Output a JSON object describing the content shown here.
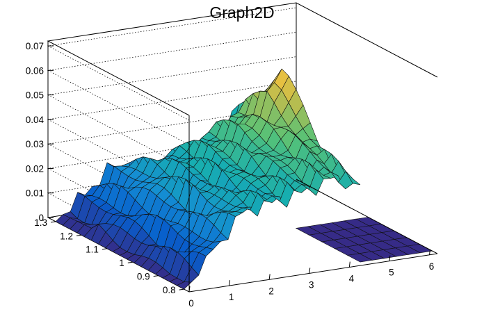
{
  "chart_data": {
    "type": "surface",
    "title": "Graph2D",
    "x_ticks": [
      "0",
      "1",
      "2",
      "3",
      "4",
      "5",
      "6"
    ],
    "y_ticks": [
      "0.8",
      "0.9",
      "1",
      "1.1",
      "1.2",
      "1.3"
    ],
    "z_ticks": [
      "0",
      "0.01",
      "0.02",
      "0.03",
      "0.04",
      "0.05",
      "0.06",
      "0.07"
    ],
    "xlim": [
      0,
      6.2
    ],
    "ylim": [
      0.78,
      1.33
    ],
    "zlim": [
      0,
      0.072
    ],
    "colormap": "kBird",
    "grid_z": true,
    "approx_points": {
      "x": [
        0,
        1.5,
        3.0,
        3.8,
        4.4
      ],
      "y": [
        0.8,
        0.95,
        1.1,
        1.2,
        1.3
      ],
      "z": [
        [
          0.0,
          0.028,
          0.032,
          0.036,
          0.03
        ],
        [
          0.0,
          0.025,
          0.034,
          0.04,
          0.04
        ],
        [
          0.0,
          0.026,
          0.036,
          0.046,
          0.062
        ],
        [
          0.0,
          0.024,
          0.033,
          0.04,
          0.044
        ],
        [
          0.0,
          0.02,
          0.0,
          0.0,
          0.032
        ]
      ]
    }
  }
}
